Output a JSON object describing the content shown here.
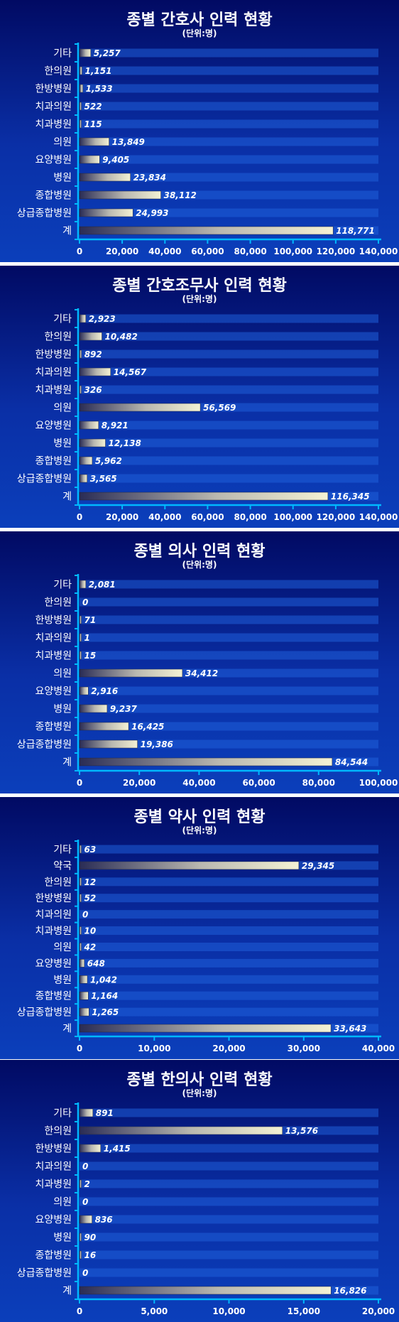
{
  "colors": {
    "background_top": "#010a63",
    "background_bottom": "#0b3fbb",
    "axis": "#00b8ff",
    "bar_dark": "#2a2c55",
    "bar_light": "#f4f2d4",
    "stripe": "#1f5fd8",
    "text": "#ffffff"
  },
  "chart_data": [
    {
      "type": "bar",
      "orientation": "horizontal",
      "title": "종별 간호사 인력 현황",
      "subtitle": "(단위:명)",
      "categories": [
        "기타",
        "한의원",
        "한방병원",
        "치과의원",
        "치과병원",
        "의원",
        "요양병원",
        "병원",
        "종합병원",
        "상급종합병원",
        "계"
      ],
      "values": [
        5257,
        1151,
        1533,
        522,
        115,
        13849,
        9405,
        23834,
        38112,
        24993,
        118771
      ],
      "value_labels": [
        "5,257",
        "1,151",
        "1,533",
        "522",
        "115",
        "13,849",
        "9,405",
        "23,834",
        "38,112",
        "24,993",
        "118,771"
      ],
      "xlim": [
        0,
        140000
      ],
      "ticks": [
        0,
        20000,
        40000,
        60000,
        80000,
        100000,
        120000,
        140000
      ],
      "tick_labels": [
        "0",
        "20,000",
        "40,000",
        "60,000",
        "80,000",
        "100,000",
        "120,000",
        "140,000"
      ]
    },
    {
      "type": "bar",
      "orientation": "horizontal",
      "title": "종별 간호조무사 인력 현황",
      "subtitle": "(단위:명)",
      "categories": [
        "기타",
        "한의원",
        "한방병원",
        "치과의원",
        "치과병원",
        "의원",
        "요양병원",
        "병원",
        "종합병원",
        "상급종합병원",
        "계"
      ],
      "values": [
        2923,
        10482,
        892,
        14567,
        326,
        56569,
        8921,
        12138,
        5962,
        3565,
        116345
      ],
      "value_labels": [
        "2,923",
        "10,482",
        "892",
        "14,567",
        "326",
        "56,569",
        "8,921",
        "12,138",
        "5,962",
        "3,565",
        "116,345"
      ],
      "xlim": [
        0,
        140000
      ],
      "ticks": [
        0,
        20000,
        40000,
        60000,
        80000,
        100000,
        120000,
        140000
      ],
      "tick_labels": [
        "0",
        "20,000",
        "40,000",
        "60,000",
        "80,000",
        "100,000",
        "120,000",
        "140,000"
      ]
    },
    {
      "type": "bar",
      "orientation": "horizontal",
      "title": "종별 의사 인력 현황",
      "subtitle": "(단위:명)",
      "categories": [
        "기타",
        "한의원",
        "한방병원",
        "치과의원",
        "치과병원",
        "의원",
        "요양병원",
        "병원",
        "종합병원",
        "상급종합병원",
        "계"
      ],
      "values": [
        2081,
        0,
        71,
        1,
        15,
        34412,
        2916,
        9237,
        16425,
        19386,
        84544
      ],
      "value_labels": [
        "2,081",
        "0",
        "71",
        "1",
        "15",
        "34,412",
        "2,916",
        "9,237",
        "16,425",
        "19,386",
        "84,544"
      ],
      "xlim": [
        0,
        100000
      ],
      "ticks": [
        0,
        20000,
        40000,
        60000,
        80000,
        100000
      ],
      "tick_labels": [
        "0",
        "20,000",
        "40,000",
        "60,000",
        "80,000",
        "100,000"
      ]
    },
    {
      "type": "bar",
      "orientation": "horizontal",
      "title": "종별 약사 인력 현황",
      "subtitle": "(단위:명)",
      "categories": [
        "기타",
        "약국",
        "한의원",
        "한방병원",
        "치과의원",
        "치과병원",
        "의원",
        "요양병원",
        "병원",
        "종합병원",
        "상급종합병원",
        "계"
      ],
      "values": [
        63,
        29345,
        12,
        52,
        0,
        10,
        42,
        648,
        1042,
        1164,
        1265,
        33643
      ],
      "value_labels": [
        "63",
        "29,345",
        "12",
        "52",
        "0",
        "10",
        "42",
        "648",
        "1,042",
        "1,164",
        "1,265",
        "33,643"
      ],
      "xlim": [
        0,
        40000
      ],
      "ticks": [
        0,
        10000,
        20000,
        30000,
        40000
      ],
      "tick_labels": [
        "0",
        "10,000",
        "20,000",
        "30,000",
        "40,000"
      ]
    },
    {
      "type": "bar",
      "orientation": "horizontal",
      "title": "종별 한의사 인력 현황",
      "subtitle": "(단위:명)",
      "categories": [
        "기타",
        "한의원",
        "한방병원",
        "치과의원",
        "치과병원",
        "의원",
        "요양병원",
        "병원",
        "종합병원",
        "상급종합병원",
        "계"
      ],
      "values": [
        891,
        13576,
        1415,
        0,
        2,
        0,
        836,
        90,
        16,
        0,
        16826
      ],
      "value_labels": [
        "891",
        "13,576",
        "1,415",
        "0",
        "2",
        "0",
        "836",
        "90",
        "16",
        "0",
        "16,826"
      ],
      "xlim": [
        0,
        20000
      ],
      "ticks": [
        0,
        5000,
        10000,
        15000,
        20000
      ],
      "tick_labels": [
        "0",
        "5,000",
        "10,000",
        "15,000",
        "20,000"
      ]
    }
  ]
}
